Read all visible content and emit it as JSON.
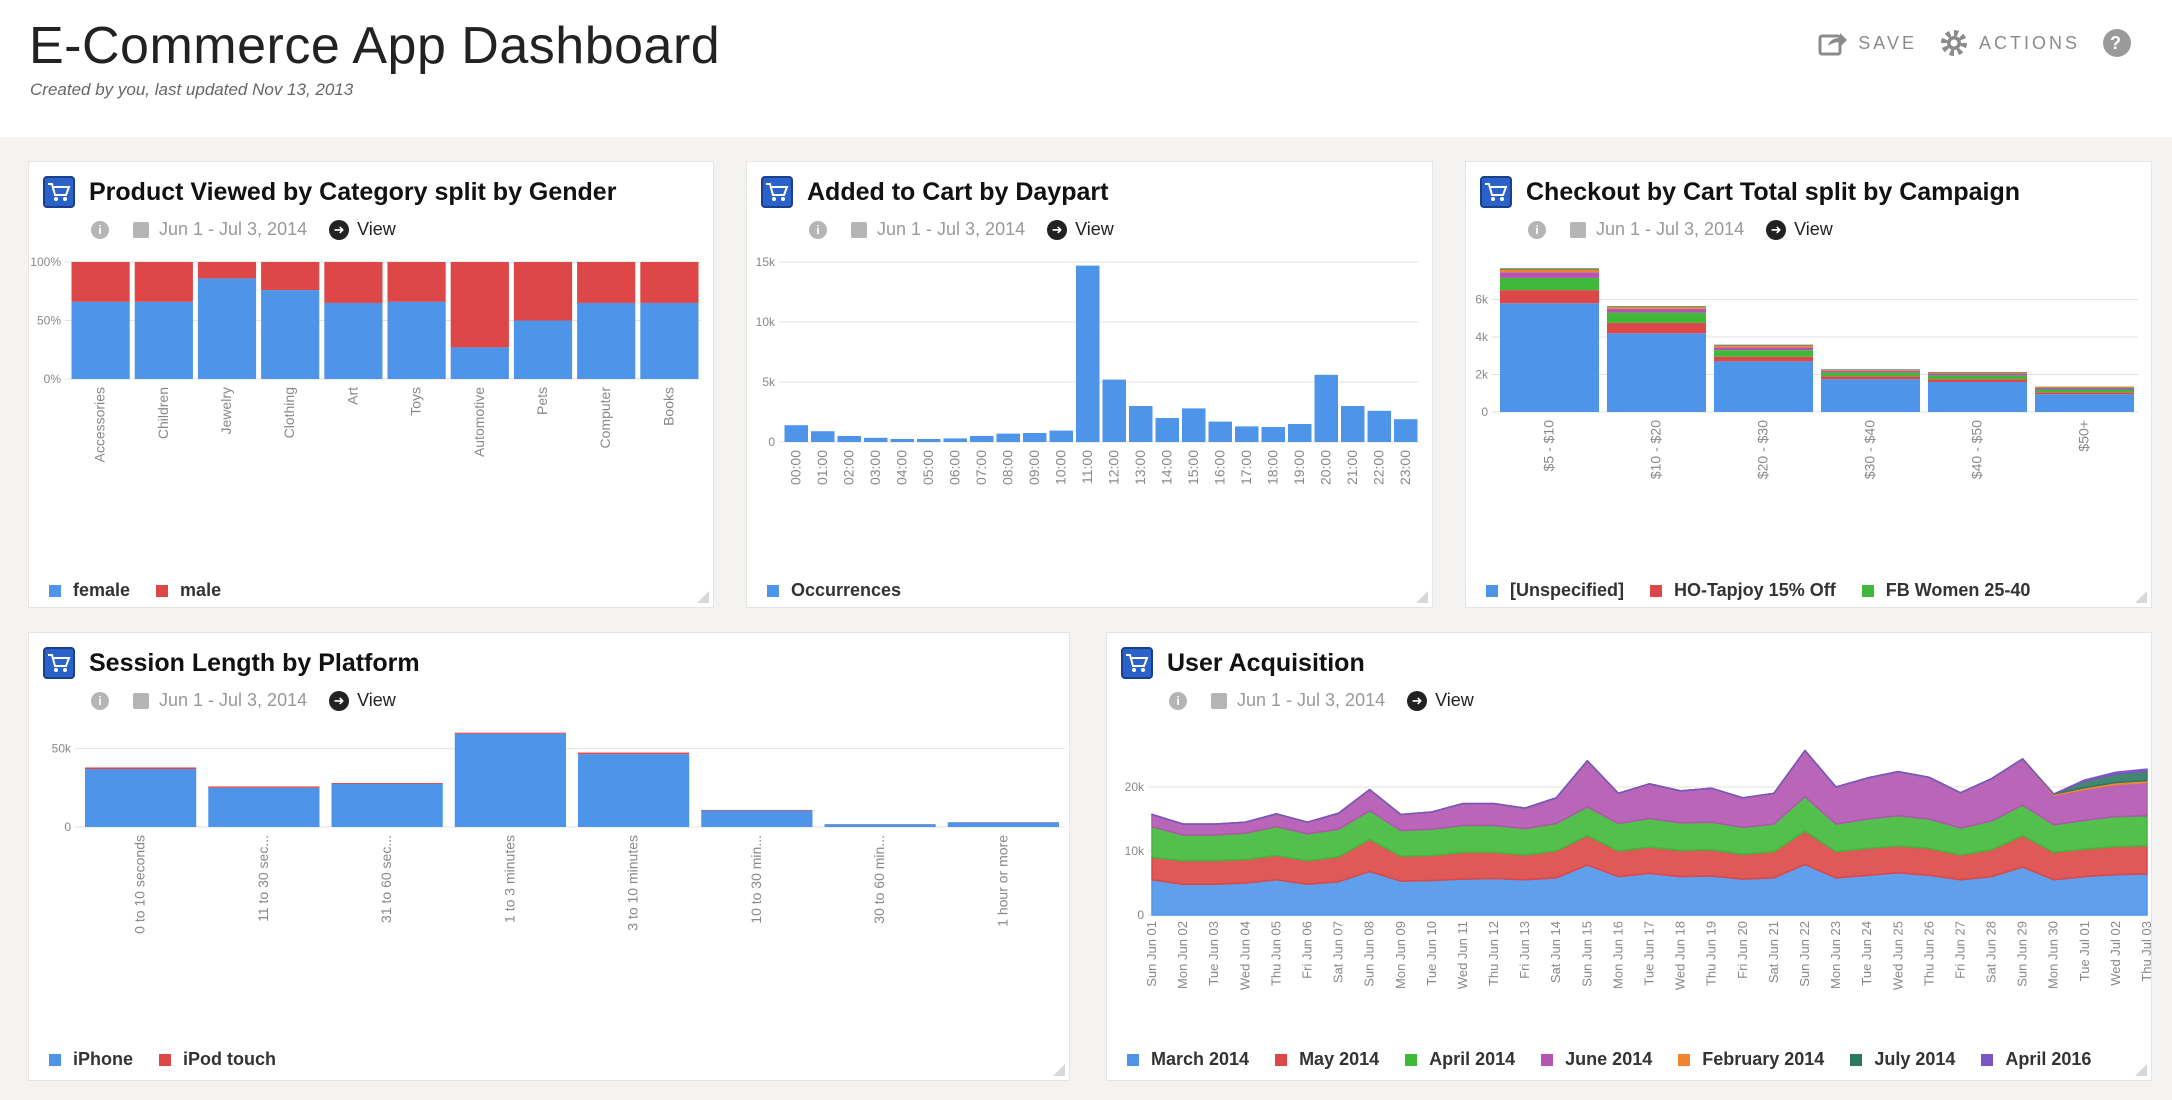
{
  "header": {
    "title": "E-Commerce App Dashboard",
    "subtitle": "Created by you, last updated Nov 13, 2013",
    "save_label": "SAVE",
    "actions_label": "ACTIONS",
    "help_icon": "help-icon"
  },
  "colors": {
    "blue": "#4e95ea",
    "red": "#dd4747",
    "green": "#40b83a",
    "purple": "#b355b0",
    "orange": "#f0852b",
    "teal": "#2c7a62",
    "violet": "#7b55c4"
  },
  "common": {
    "date_range": "Jun 1 - Jul 3, 2014",
    "view_label": "View"
  },
  "panels": {
    "p1": {
      "title": "Product Viewed by Category split by Gender"
    },
    "p2": {
      "title": "Added to Cart by Daypart"
    },
    "p3": {
      "title": "Checkout by Cart Total split by Campaign"
    },
    "p4": {
      "title": "Session Length by Platform"
    },
    "p5": {
      "title": "User Acquisition"
    }
  },
  "chart_data": [
    {
      "id": "p1",
      "type": "bar",
      "stacked": true,
      "categories": [
        "Accessories",
        "Children",
        "Jewelry",
        "Clothing",
        "Art",
        "Toys",
        "Automotive",
        "Pets",
        "Computer",
        "Books"
      ],
      "series": [
        {
          "name": "female",
          "color": "#4e95ea",
          "values": [
            66,
            66,
            86,
            76,
            65,
            66,
            27,
            50,
            65,
            65
          ]
        },
        {
          "name": "male",
          "color": "#dd4747",
          "values": [
            34,
            34,
            14,
            24,
            35,
            34,
            73,
            50,
            35,
            35
          ]
        }
      ],
      "yticks": [
        "0%",
        "50%",
        "100%"
      ],
      "ylim": [
        0,
        100
      ]
    },
    {
      "id": "p2",
      "type": "bar",
      "categories": [
        "00:00",
        "01:00",
        "02:00",
        "03:00",
        "04:00",
        "05:00",
        "06:00",
        "07:00",
        "08:00",
        "09:00",
        "10:00",
        "11:00",
        "12:00",
        "13:00",
        "14:00",
        "15:00",
        "16:00",
        "17:00",
        "18:00",
        "19:00",
        "20:00",
        "21:00",
        "22:00",
        "23:00"
      ],
      "series": [
        {
          "name": "Occurrences",
          "color": "#4e95ea",
          "values": [
            1400,
            900,
            500,
            350,
            250,
            250,
            300,
            500,
            700,
            750,
            950,
            14700,
            5200,
            3000,
            2000,
            2800,
            1700,
            1300,
            1250,
            1500,
            5600,
            3000,
            2600,
            1900
          ]
        }
      ],
      "yticks": [
        "0",
        "5k",
        "10k",
        "15k"
      ],
      "ylim": [
        0,
        15000
      ]
    },
    {
      "id": "p3",
      "type": "bar",
      "stacked": true,
      "categories": [
        "$5 - $10",
        "$10 - $20",
        "$20 - $30",
        "$30 - $40",
        "$40 - $50",
        "$50+"
      ],
      "series": [
        {
          "name": "[Unspecified]",
          "color": "#4e95ea",
          "values": [
            5800,
            4200,
            2700,
            1750,
            1600,
            950
          ]
        },
        {
          "name": "HO-Tapjoy 15% Off",
          "color": "#dd4747",
          "values": [
            700,
            550,
            250,
            150,
            150,
            100
          ]
        },
        {
          "name": "FB Women 25-40",
          "color": "#40b83a",
          "values": [
            650,
            550,
            350,
            200,
            200,
            150
          ]
        },
        {
          "name": "",
          "color": "#b355b0",
          "values": [
            300,
            200,
            150,
            100,
            100,
            80
          ]
        },
        {
          "name": "",
          "color": "#f0852b",
          "values": [
            150,
            100,
            100,
            50,
            50,
            50
          ]
        },
        {
          "name": "",
          "color": "#2c7a62",
          "values": [
            60,
            40,
            40,
            30,
            30,
            20
          ]
        }
      ],
      "yticks": [
        "0",
        "2k",
        "4k",
        "6k"
      ],
      "ylim": [
        0,
        8000
      ]
    },
    {
      "id": "p4",
      "type": "bar",
      "stacked": true,
      "categories": [
        "0 to 10 seconds",
        "11 to 30 sec...",
        "31 to 60 sec...",
        "1 to 3 minutes",
        "3 to 10 minutes",
        "10 to 30 min...",
        "30 to 60 min...",
        "1 hour or more"
      ],
      "series": [
        {
          "name": "iPhone",
          "color": "#4e95ea",
          "values": [
            37000,
            25000,
            27500,
            59500,
            46500,
            10500,
            1800,
            3000
          ]
        },
        {
          "name": "iPod touch",
          "color": "#dd4747",
          "values": [
            1000,
            900,
            600,
            700,
            1000,
            400,
            100,
            100
          ]
        }
      ],
      "yticks": [
        "0",
        "50k"
      ],
      "ylim": [
        0,
        60000
      ]
    },
    {
      "id": "p5",
      "type": "area",
      "stacked": true,
      "categories": [
        "Sun Jun 01",
        "Mon Jun 02",
        "Tue Jun 03",
        "Wed Jun 04",
        "Thu Jun 05",
        "Fri Jun 06",
        "Sat Jun 07",
        "Sun Jun 08",
        "Mon Jun 09",
        "Tue Jun 10",
        "Wed Jun 11",
        "Thu Jun 12",
        "Fri Jun 13",
        "Sat Jun 14",
        "Sun Jun 15",
        "Mon Jun 16",
        "Tue Jun 17",
        "Wed Jun 18",
        "Thu Jun 19",
        "Fri Jun 20",
        "Sat Jun 21",
        "Sun Jun 22",
        "Mon Jun 23",
        "Tue Jun 24",
        "Wed Jun 25",
        "Thu Jun 26",
        "Fri Jun 27",
        "Sat Jun 28",
        "Sun Jun 29",
        "Mon Jun 30",
        "Tue Jul 01",
        "Wed Jul 02",
        "Thu Jul 03"
      ],
      "series": [
        {
          "name": "March 2014",
          "color": "#4e95ea",
          "values": [
            5500,
            4800,
            4800,
            5000,
            5500,
            4800,
            5200,
            6800,
            5300,
            5400,
            5600,
            5700,
            5500,
            5800,
            7800,
            6000,
            6500,
            6000,
            6100,
            5600,
            5800,
            7900,
            5800,
            6200,
            6600,
            6200,
            5500,
            6000,
            7500,
            5500,
            6000,
            6300,
            6400
          ]
        },
        {
          "name": "May 2014",
          "color": "#dd4747",
          "values": [
            3500,
            3700,
            3700,
            3700,
            3800,
            3700,
            3900,
            5000,
            3900,
            3900,
            4200,
            4100,
            3900,
            4200,
            4600,
            4000,
            4100,
            4100,
            4100,
            3900,
            4100,
            5200,
            4100,
            4200,
            4200,
            4200,
            3900,
            4200,
            4900,
            4300,
            4300,
            4400,
            4400
          ]
        },
        {
          "name": "April 2014",
          "color": "#40b83a",
          "values": [
            4800,
            4000,
            4000,
            4100,
            4500,
            4200,
            4300,
            4500,
            4000,
            4100,
            4200,
            4200,
            4100,
            4300,
            4500,
            4300,
            4500,
            4300,
            4300,
            4200,
            4300,
            5400,
            4300,
            4600,
            4700,
            4600,
            4200,
            4500,
            4800,
            4300,
            4500,
            4700,
            4700
          ]
        },
        {
          "name": "June 2014",
          "color": "#b355b0",
          "values": [
            1900,
            1700,
            1700,
            1700,
            2000,
            1800,
            2500,
            3300,
            2500,
            2700,
            3400,
            3400,
            3200,
            4000,
            7200,
            4700,
            5400,
            5000,
            5300,
            4600,
            4800,
            7200,
            5800,
            6400,
            6900,
            6500,
            5500,
            6600,
            7200,
            4600,
            4800,
            5000,
            5200
          ]
        },
        {
          "name": "February 2014",
          "color": "#f0852b",
          "values": [
            0,
            0,
            0,
            0,
            0,
            0,
            0,
            0,
            0,
            0,
            0,
            0,
            0,
            0,
            0,
            0,
            0,
            0,
            0,
            0,
            0,
            0,
            0,
            0,
            0,
            0,
            0,
            0,
            0,
            200,
            300,
            300,
            300
          ]
        },
        {
          "name": "July 2014",
          "color": "#2c7a62",
          "values": [
            0,
            0,
            0,
            0,
            0,
            0,
            0,
            0,
            0,
            0,
            0,
            0,
            0,
            0,
            0,
            0,
            0,
            0,
            0,
            0,
            0,
            0,
            0,
            0,
            0,
            0,
            0,
            0,
            0,
            0,
            1000,
            1300,
            1500
          ]
        },
        {
          "name": "April 2016",
          "color": "#7b55c4",
          "values": [
            0,
            0,
            0,
            0,
            0,
            0,
            0,
            0,
            0,
            0,
            0,
            0,
            0,
            0,
            0,
            0,
            0,
            0,
            0,
            0,
            0,
            0,
            0,
            0,
            0,
            0,
            0,
            0,
            0,
            0,
            200,
            300,
            300
          ]
        }
      ],
      "yticks": [
        "0",
        "10k",
        "20k"
      ],
      "ylim": [
        0,
        25000
      ]
    }
  ]
}
